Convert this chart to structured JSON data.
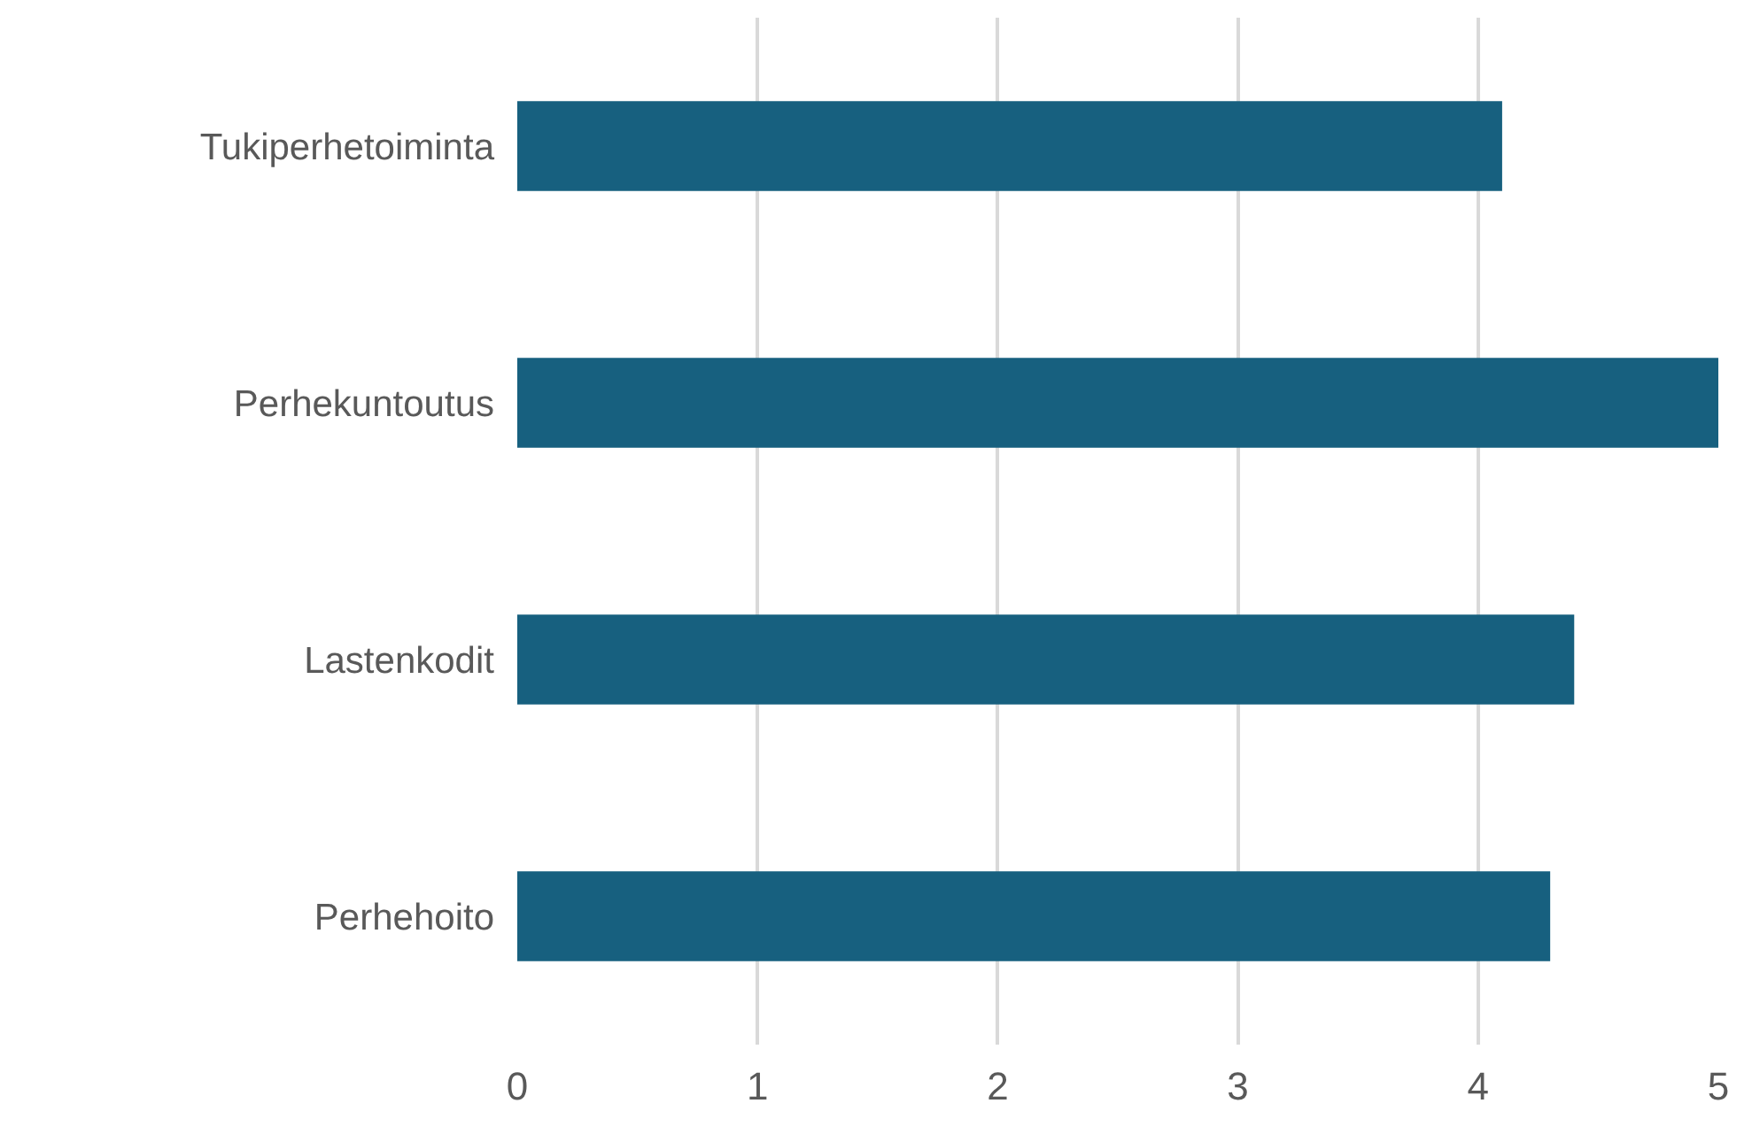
{
  "chart_data": {
    "type": "bar",
    "orientation": "horizontal",
    "categories": [
      "Tukiperhetoiminta",
      "Perhekuntoutus",
      "Lastenkodit",
      "Perhehoito"
    ],
    "values": [
      4.1,
      5.0,
      4.4,
      4.3
    ],
    "color": "#17607f",
    "xlim": [
      0,
      5
    ],
    "xticks": [
      0,
      1,
      2,
      3,
      4,
      5
    ],
    "grid": "x"
  }
}
